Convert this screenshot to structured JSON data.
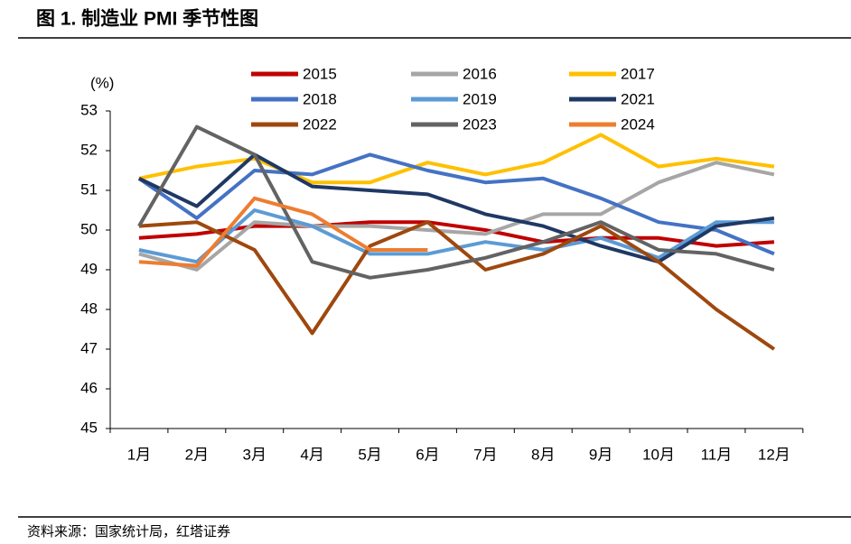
{
  "chart_data": {
    "type": "line",
    "title": "图 1. 制造业 PMI 季节性图",
    "source": "资料来源：国家统计局，红塔证券",
    "ylabel": "(%)",
    "categories": [
      "1月",
      "2月",
      "3月",
      "4月",
      "5月",
      "6月",
      "7月",
      "8月",
      "9月",
      "10月",
      "11月",
      "12月"
    ],
    "ylim": [
      45,
      53
    ],
    "yticks": [
      45,
      46,
      47,
      48,
      49,
      50,
      51,
      52,
      53
    ],
    "grid": false,
    "legend": "top",
    "series": [
      {
        "name": "2015",
        "color": "#c00000",
        "values": [
          49.8,
          49.9,
          50.1,
          50.1,
          50.2,
          50.2,
          50.0,
          49.7,
          49.8,
          49.8,
          49.6,
          49.7
        ]
      },
      {
        "name": "2016",
        "color": "#a6a6a6",
        "values": [
          49.4,
          49.0,
          50.2,
          50.1,
          50.1,
          50.0,
          49.9,
          50.4,
          50.4,
          51.2,
          51.7,
          51.4
        ]
      },
      {
        "name": "2017",
        "color": "#ffc000",
        "values": [
          51.3,
          51.6,
          51.8,
          51.2,
          51.2,
          51.7,
          51.4,
          51.7,
          52.4,
          51.6,
          51.8,
          51.6
        ]
      },
      {
        "name": "2018",
        "color": "#4472c4",
        "values": [
          51.3,
          50.3,
          51.5,
          51.4,
          51.9,
          51.5,
          51.2,
          51.3,
          50.8,
          50.2,
          50.0,
          49.4
        ]
      },
      {
        "name": "2019",
        "color": "#5b9bd5",
        "values": [
          49.5,
          49.2,
          50.5,
          50.1,
          49.4,
          49.4,
          49.7,
          49.5,
          49.8,
          49.3,
          50.2,
          50.2
        ]
      },
      {
        "name": "2021",
        "color": "#1f3864",
        "values": [
          51.3,
          50.6,
          51.9,
          51.1,
          51.0,
          50.9,
          50.4,
          50.1,
          49.6,
          49.2,
          50.1,
          50.3
        ]
      },
      {
        "name": "2022",
        "color": "#9e480e",
        "values": [
          50.1,
          50.2,
          49.5,
          47.4,
          49.6,
          50.2,
          49.0,
          49.4,
          50.1,
          49.2,
          48.0,
          47.0
        ]
      },
      {
        "name": "2023",
        "color": "#636363",
        "values": [
          50.1,
          52.6,
          51.9,
          49.2,
          48.8,
          49.0,
          49.3,
          49.7,
          50.2,
          49.5,
          49.4,
          49.0
        ]
      },
      {
        "name": "2024",
        "color": "#ed7d31",
        "values": [
          49.2,
          49.1,
          50.8,
          50.4,
          49.5,
          49.5,
          null,
          null,
          null,
          null,
          null,
          null
        ]
      }
    ]
  }
}
